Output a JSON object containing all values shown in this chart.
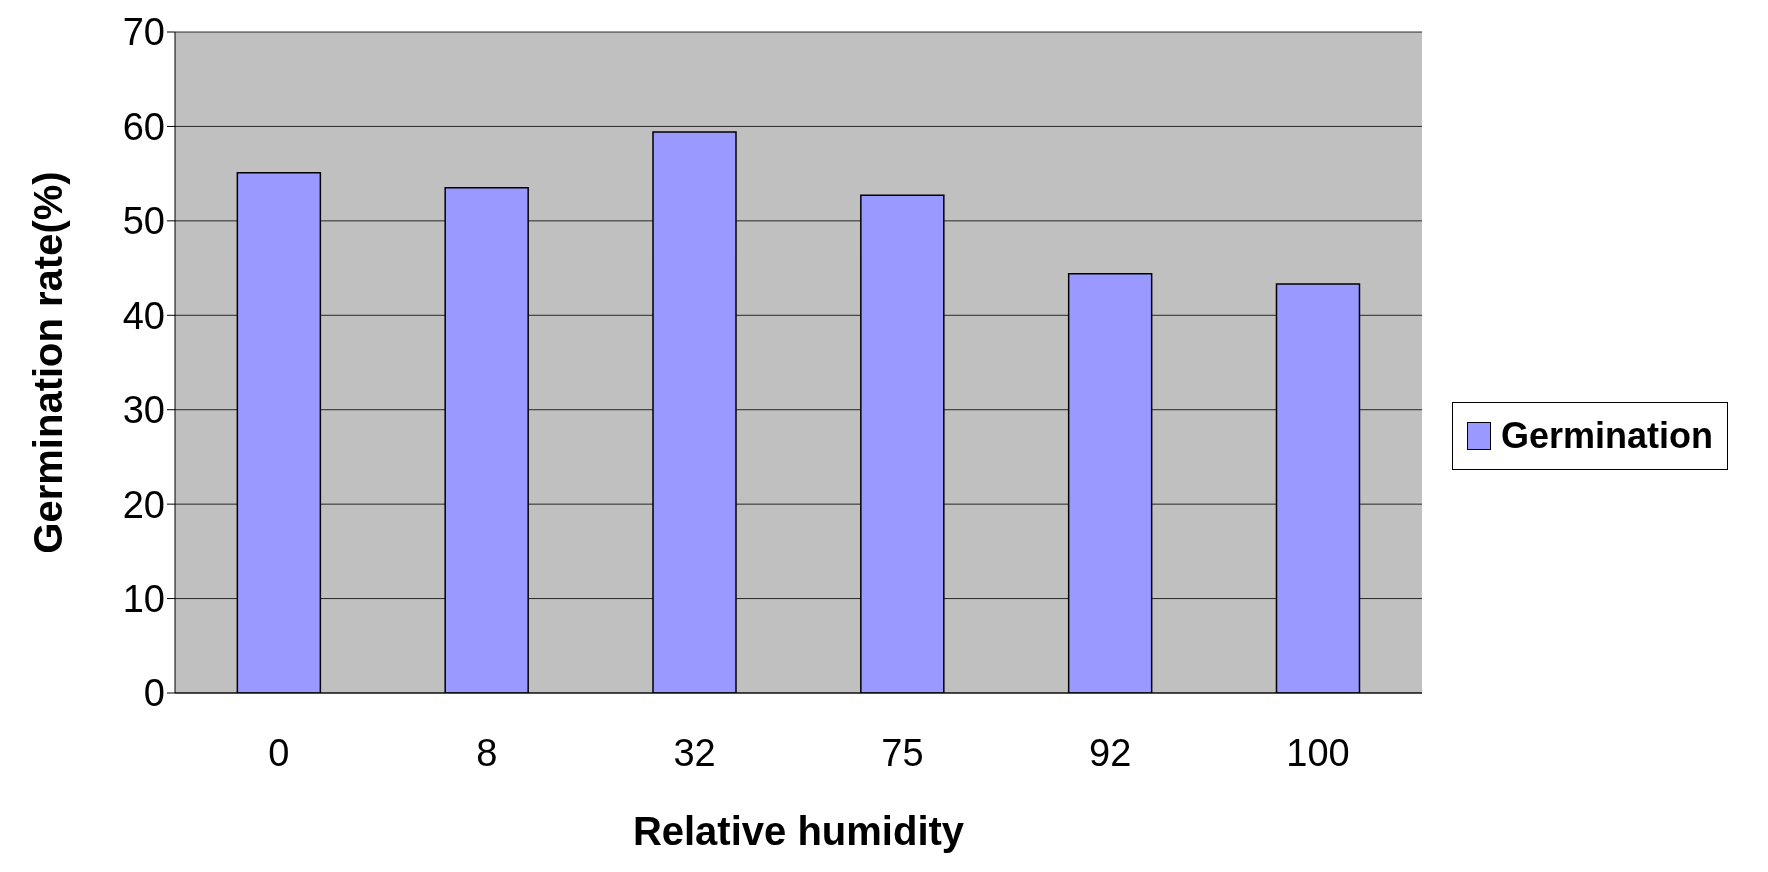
{
  "chart_data": {
    "type": "bar",
    "xlabel": "Relative humidity",
    "ylabel": "Germination rate(%)",
    "categories": [
      "0",
      "8",
      "32",
      "75",
      "92",
      "100"
    ],
    "series": [
      {
        "name": "Germination",
        "color": "#9999ff",
        "values": [
          55.1,
          53.5,
          59.4,
          52.7,
          44.4,
          43.3
        ]
      }
    ],
    "ylim": [
      0,
      70
    ],
    "yticks": [
      0,
      10,
      20,
      30,
      40,
      50,
      60,
      70
    ],
    "grid": "y",
    "legend": "right"
  }
}
